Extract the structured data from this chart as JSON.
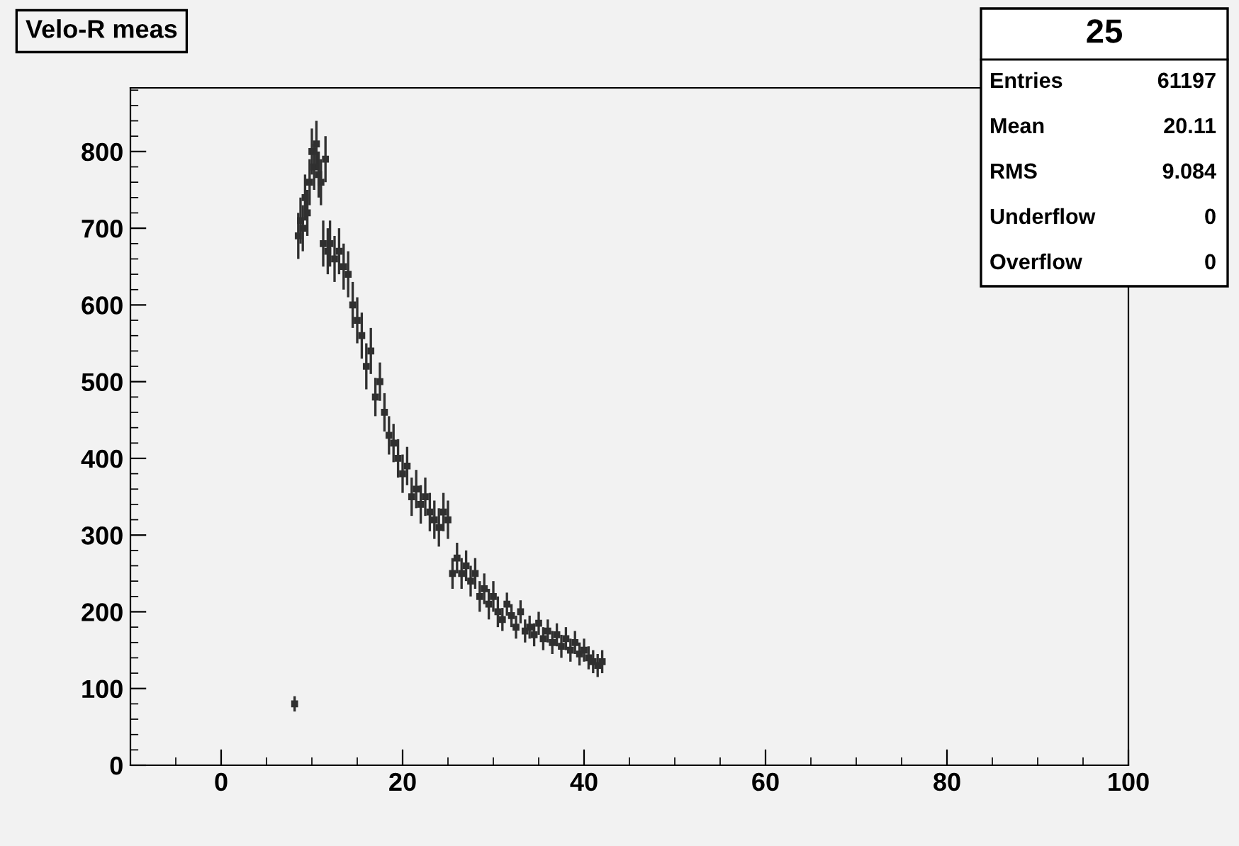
{
  "chart_data": {
    "type": "scatter",
    "title": "Velo-R meas",
    "annotations": [
      "25",
      "Entries 61197",
      "Mean 20.11",
      "RMS 9.084",
      "Underflow 0",
      "Overflow 0"
    ],
    "series": [
      {
        "color": "#303030",
        "x": [
          8.1,
          8.5,
          8.75,
          9,
          9.25,
          9.5,
          9.75,
          10,
          10.25,
          10.5,
          10.75,
          11,
          11.25,
          11.5,
          11.75,
          12,
          12.5,
          13,
          13.5,
          14,
          14.5,
          15,
          15.5,
          16,
          16.5,
          17,
          17.5,
          18,
          18.5,
          19,
          19.5,
          20,
          20.5,
          21,
          21.5,
          22,
          22.5,
          23,
          23.5,
          24,
          24.5,
          25,
          25.5,
          26,
          26.5,
          27,
          27.5,
          28,
          28.5,
          29,
          29.5,
          30,
          30.5,
          31,
          31.5,
          32,
          32.5,
          33,
          33.5,
          34,
          34.5,
          35,
          35.5,
          36,
          36.5,
          37,
          37.5,
          38,
          38.5,
          39,
          39.5,
          40,
          40.5,
          41,
          41.5,
          42
        ],
        "values": [
          80,
          690,
          710,
          700,
          740,
          720,
          760,
          800,
          780,
          810,
          770,
          760,
          680,
          790,
          670,
          680,
          660,
          670,
          650,
          640,
          600,
          580,
          560,
          520,
          540,
          480,
          500,
          460,
          430,
          420,
          400,
          380,
          390,
          350,
          360,
          340,
          350,
          330,
          320,
          310,
          330,
          320,
          250,
          270,
          250,
          260,
          240,
          250,
          220,
          230,
          210,
          220,
          200,
          190,
          210,
          195,
          180,
          200,
          175,
          180,
          170,
          185,
          165,
          175,
          160,
          170,
          155,
          165,
          150,
          160,
          145,
          150,
          140,
          135,
          130,
          135
        ],
        "errors": [
          10,
          30,
          30,
          30,
          30,
          30,
          30,
          30,
          30,
          30,
          30,
          30,
          30,
          30,
          30,
          30,
          30,
          30,
          30,
          30,
          30,
          30,
          30,
          30,
          30,
          25,
          25,
          25,
          25,
          25,
          25,
          25,
          25,
          25,
          25,
          25,
          25,
          25,
          25,
          25,
          25,
          25,
          20,
          20,
          20,
          20,
          20,
          20,
          20,
          20,
          20,
          20,
          20,
          15,
          15,
          15,
          15,
          15,
          15,
          15,
          15,
          15,
          15,
          15,
          15,
          15,
          15,
          15,
          15,
          15,
          15,
          15,
          15,
          15,
          15,
          15
        ]
      }
    ],
    "marker": "square",
    "xlim": [
      -10,
      100
    ],
    "xticks": [
      0,
      20,
      40,
      60,
      80,
      100
    ],
    "ylim": [
      0,
      883
    ],
    "yticks": [
      0,
      100,
      200,
      300,
      400,
      500,
      600,
      700,
      800
    ],
    "grid": false
  }
}
